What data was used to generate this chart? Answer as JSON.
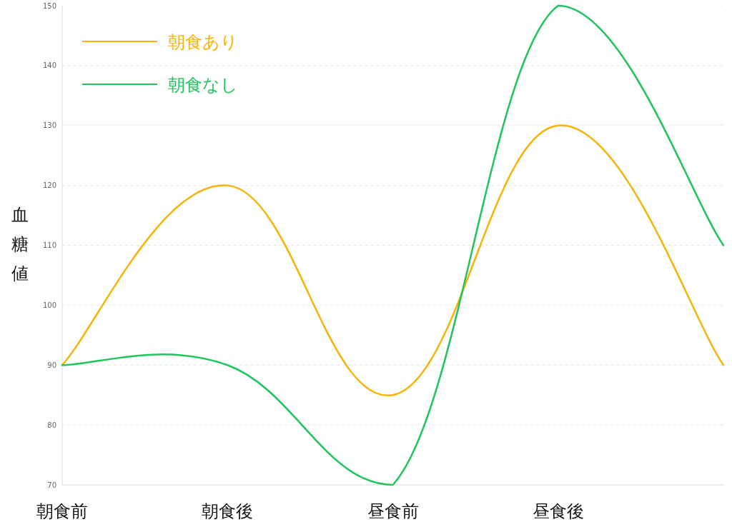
{
  "chart_data": {
    "type": "line",
    "ylabel": "血糖値",
    "categories": [
      "朝食前",
      "朝食後",
      "昼食前",
      "昼食後",
      null
    ],
    "series": [
      {
        "name": "朝食あり",
        "color": "#f9b208",
        "values": [
          90,
          120,
          85,
          130,
          90
        ]
      },
      {
        "name": "朝食なし",
        "color": "#1fc45c",
        "values": [
          90,
          90,
          70,
          150,
          110
        ]
      }
    ],
    "ylim": [
      70,
      150
    ],
    "yticks": [
      70,
      80,
      90,
      100,
      110,
      120,
      130,
      140,
      150
    ],
    "grid": "y",
    "legend": "top left"
  }
}
